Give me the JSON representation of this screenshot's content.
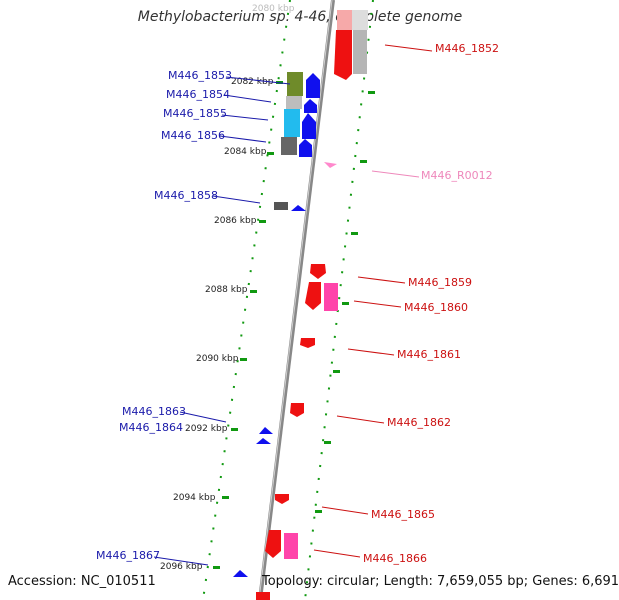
{
  "header": {
    "title": "Methylobacterium sp. 4-46, complete genome",
    "top_tick_label": "2080 kbp"
  },
  "footer": {
    "accession": "Accession: NC_010511",
    "topology": "Topology: circular; Length: 7,659,055 bp; Genes: 6,691"
  },
  "scale_ticks": [
    "2082 kbp",
    "2084 kbp",
    "2086 kbp",
    "2088 kbp",
    "2090 kbp",
    "2092 kbp",
    "2094 kbp",
    "2096 kbp"
  ],
  "genes_left": [
    "M446_1853",
    "M446_1854",
    "M446_1855",
    "M446_1856",
    "M446_1858",
    "M446_1863",
    "M446_1864",
    "M446_1867"
  ],
  "genes_right": [
    "M446_1852",
    "M446_R0012",
    "M446_1859",
    "M446_1860",
    "M446_1861",
    "M446_1862",
    "M446_1865",
    "M446_1866"
  ],
  "colors": {
    "backbone": "#7a7a7a",
    "forward_gene": "#1010ee",
    "reverse_gene": "#ee1111",
    "pseudo_gene": "#bbbbbb",
    "rna_gene": "#ff55aa",
    "label_left": "#1a1aaa",
    "label_right": "#cc1111",
    "label_rna": "#ee88bb",
    "tick": "#118811"
  }
}
